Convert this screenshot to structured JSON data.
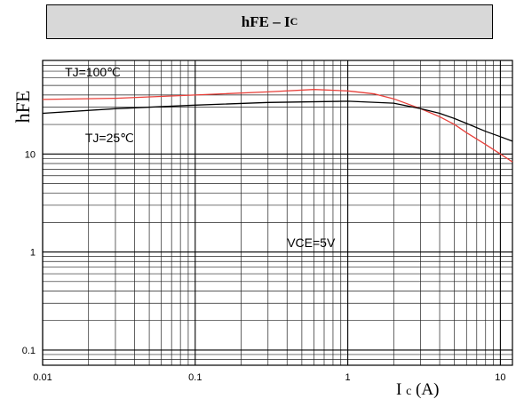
{
  "chart_data": {
    "type": "line",
    "title": "hFE – I",
    "title_sub": "C",
    "ylabel": "hFE",
    "xlabel": "I",
    "xlabel_sub": "c",
    "xlabel_unit": "(A)",
    "xscale": "log",
    "yscale": "log",
    "xlim": [
      0.01,
      12
    ],
    "ylim": [
      0.07,
      90
    ],
    "grid": true,
    "x_ticks": [
      {
        "value": 0.01,
        "label": "0.01"
      },
      {
        "value": 0.1,
        "label": "0.1"
      },
      {
        "value": 1,
        "label": "1"
      },
      {
        "value": 10,
        "label": "10"
      }
    ],
    "y_ticks": [
      {
        "value": 0.1,
        "label": "0.1"
      },
      {
        "value": 1,
        "label": "1"
      },
      {
        "value": 10,
        "label": "10"
      }
    ],
    "annotations": [
      {
        "text": "TJ=100℃",
        "x": 0.014,
        "y": 62
      },
      {
        "text": "TJ=25℃",
        "x": 0.019,
        "y": 13.2
      },
      {
        "text": "VCE=5V",
        "x": 0.4,
        "y": 1.12
      }
    ],
    "series": [
      {
        "name": "TJ=100℃",
        "color": "#e8403a",
        "x": [
          0.01,
          0.03,
          0.1,
          0.3,
          0.6,
          1,
          1.5,
          2,
          3,
          4,
          5,
          6,
          8,
          10,
          12
        ],
        "y": [
          36,
          37,
          40,
          43,
          45.5,
          44,
          41,
          36.5,
          29,
          24,
          20,
          16.5,
          12.5,
          10,
          8.3
        ]
      },
      {
        "name": "TJ=25℃",
        "color": "#000000",
        "x": [
          0.01,
          0.03,
          0.1,
          0.3,
          1,
          2,
          3,
          4,
          5,
          6,
          8,
          10,
          12
        ],
        "y": [
          26,
          29,
          31.5,
          33.5,
          34.5,
          33,
          29,
          26,
          23,
          20.5,
          17,
          15,
          13.5
        ]
      }
    ]
  }
}
